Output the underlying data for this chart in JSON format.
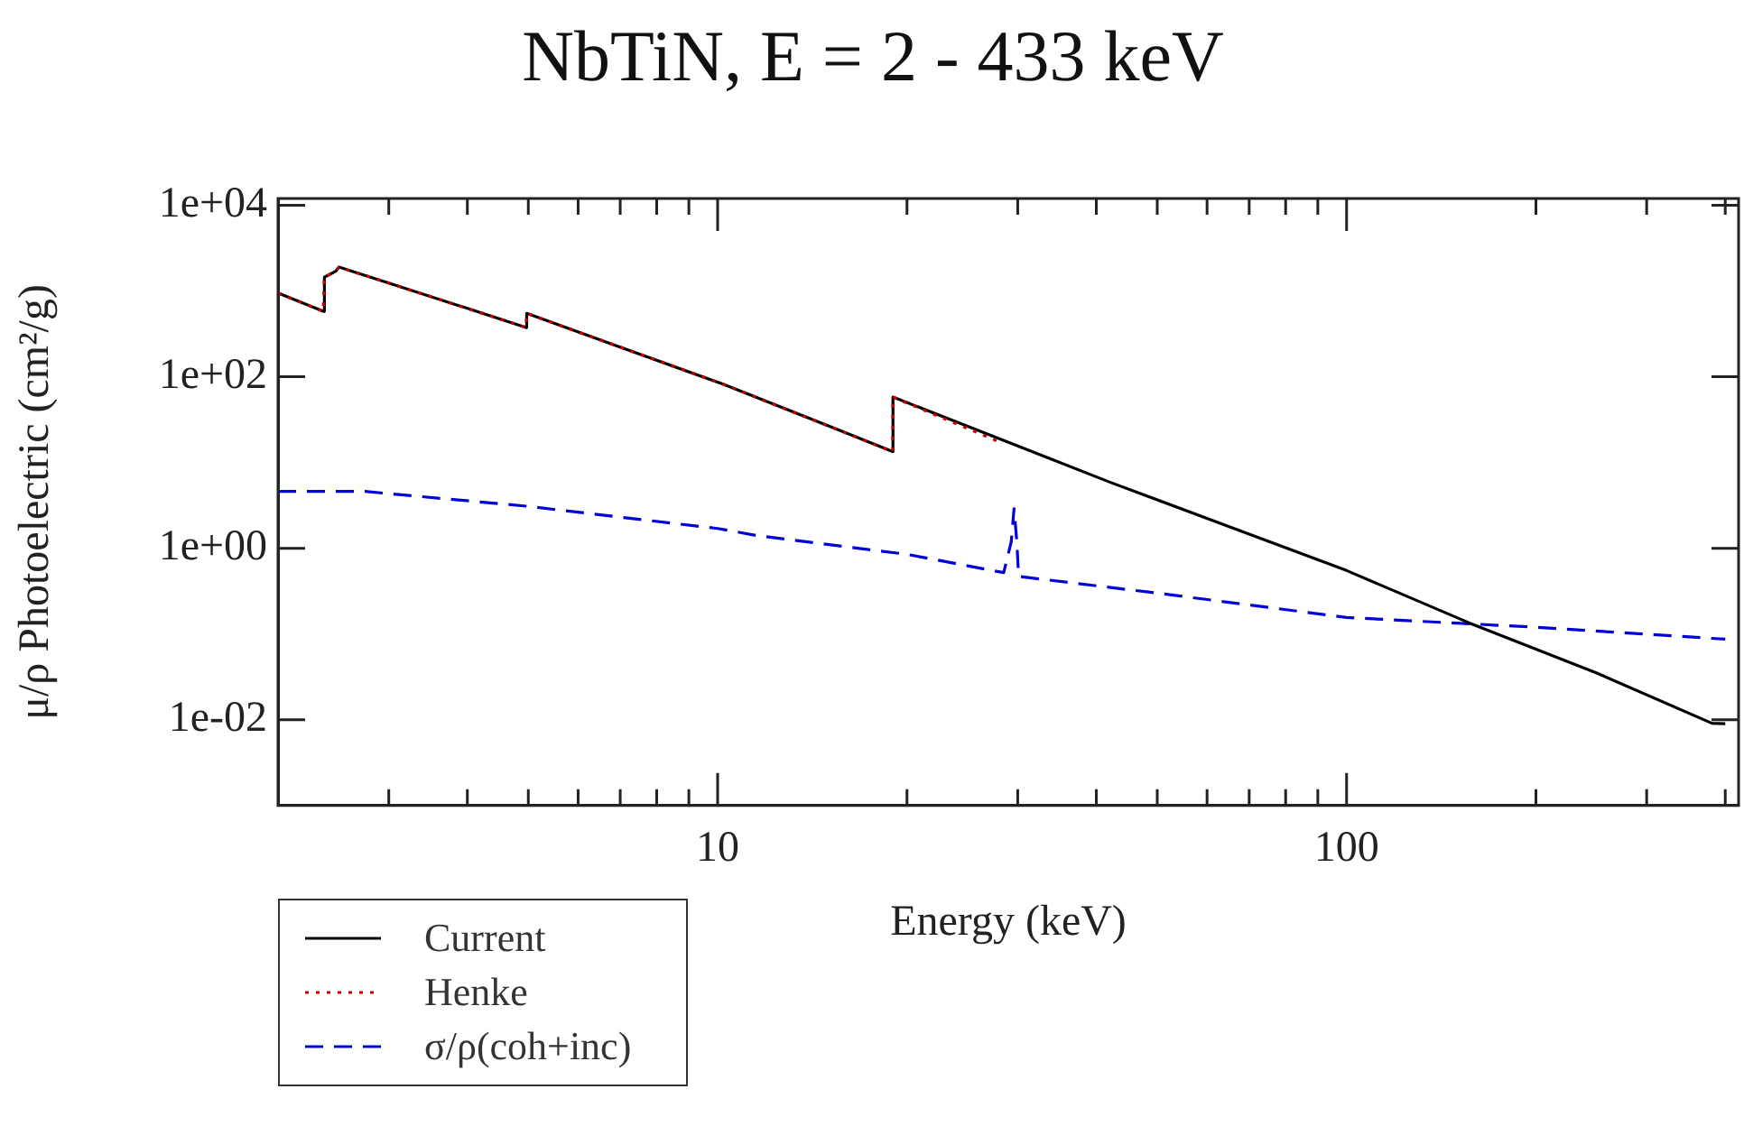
{
  "chart_data": {
    "type": "line",
    "title": "NbTiN, E = 2 - 433 keV",
    "xlabel": "Energy (keV)",
    "ylabel": "μ/ρ Photoelectric (cm²/g)",
    "log": "xy",
    "legend": "bottom left",
    "xlim": [
      2,
      420
    ],
    "ylim": [
      0.001,
      12000
    ],
    "xticks": [
      {
        "value": 3,
        "label": null
      },
      {
        "value": 4,
        "label": null
      },
      {
        "value": 5,
        "label": null
      },
      {
        "value": 6,
        "label": null
      },
      {
        "value": 7,
        "label": null
      },
      {
        "value": 8,
        "label": null
      },
      {
        "value": 9,
        "label": null
      },
      10,
      {
        "value": 20,
        "label": null
      },
      {
        "value": 30,
        "label": null
      },
      {
        "value": 40,
        "label": null
      },
      {
        "value": 50,
        "label": null
      },
      {
        "value": 60,
        "label": null
      },
      {
        "value": 70,
        "label": null
      },
      {
        "value": 80,
        "label": null
      },
      {
        "value": 90,
        "label": null
      },
      100,
      {
        "value": 200,
        "label": null
      },
      {
        "value": 300,
        "label": null
      },
      {
        "value": 400,
        "label": null
      }
    ],
    "yticks": [
      {
        "value": 0.01,
        "label": "1e-02"
      },
      {
        "value": 1,
        "label": "1e+00"
      },
      {
        "value": 100,
        "label": "1e+02"
      },
      {
        "value": 10000,
        "label": "1e+04"
      }
    ],
    "series": [
      {
        "name": "Current",
        "color": "#000000",
        "line_style": "solid",
        "x": [
          2,
          2.36,
          2.37,
          2.47,
          2.5,
          3,
          4,
          4.96,
          4.97,
          7,
          10.2,
          15,
          18.98,
          19,
          30,
          42.3,
          70,
          100,
          157,
          250,
          381,
          400
        ],
        "values": [
          950,
          580,
          1450,
          1700,
          1900,
          1240,
          627,
          375,
          550,
          222,
          82,
          26.7,
          13.4,
          58,
          15.6,
          5.8,
          1.46,
          0.55,
          0.134,
          0.035,
          0.0091,
          0.009
        ]
      },
      {
        "name": "Henke",
        "color": "#cc0000",
        "line_style": "dotted",
        "x": [
          2,
          2.36,
          2.37,
          2.47,
          2.5,
          3,
          4,
          4.96,
          4.97,
          7,
          10.2,
          15,
          18.98,
          19,
          28
        ],
        "values": [
          950,
          580,
          1450,
          1700,
          1900,
          1240,
          627,
          375,
          550,
          222,
          82,
          26.7,
          13.4,
          58,
          17.5
        ]
      },
      {
        "name": "σ/ρ(coh+inc)",
        "color": "#0000dd",
        "line_style": "dashed",
        "x": [
          2,
          2.75,
          4.96,
          10,
          11.6,
          20,
          28.5,
          29.3,
          29.6,
          29.9,
          30.1,
          50,
          100,
          200,
          400
        ],
        "values": [
          4.6,
          4.6,
          3.1,
          1.7,
          1.4,
          0.85,
          0.52,
          1.2,
          2.9,
          1.2,
          0.47,
          0.3,
          0.156,
          0.12,
          0.087
        ]
      }
    ]
  }
}
